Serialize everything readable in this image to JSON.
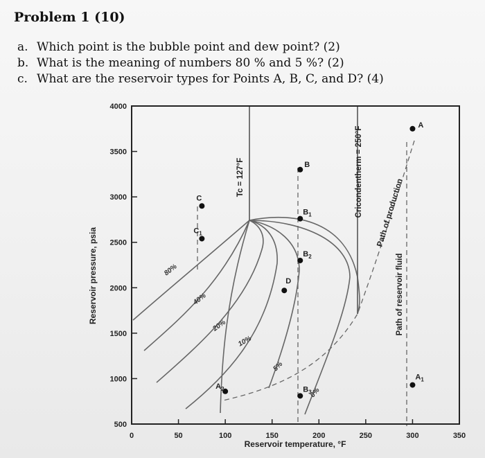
{
  "problem": {
    "title": "Problem 1 (10)",
    "questions": [
      {
        "label": "a.",
        "text": "Which point is the bubble point and dew point? (2)"
      },
      {
        "label": "b.",
        "text": "What is the meaning of numbers 80 % and 5 %? (2)"
      },
      {
        "label": "c.",
        "text": "What are the reservoir types for Points A, B, C, and D? (4)"
      }
    ]
  },
  "chart_data": {
    "type": "phase-diagram",
    "xlabel": "Reservoir temperature, °F",
    "ylabel": "Reservoir pressure, psia",
    "xlim": [
      0,
      350
    ],
    "ylim": [
      500,
      4000
    ],
    "x_ticks": [
      "0",
      "50",
      "100",
      "150",
      "200",
      "250",
      "300",
      "350"
    ],
    "y_ticks": [
      "500",
      "1000",
      "1500",
      "2000",
      "2500",
      "3000",
      "3500",
      "4000"
    ],
    "critical_temperature_label": "Tc = 127°F",
    "cricondentherm_label": "Cricondentherm = 250°F",
    "path_of_production_label": "Path of production",
    "path_of_fluid_label": "Path of reservoir fluid",
    "quality_lines": [
      "80%",
      "40%",
      "20%",
      "10%",
      "5%",
      "0%"
    ],
    "points": [
      {
        "name": "A",
        "x": 300,
        "y": 3750
      },
      {
        "name": "A1",
        "x": 300,
        "y": 930
      },
      {
        "name": "A2",
        "x": 100,
        "y": 860
      },
      {
        "name": "B",
        "x": 180,
        "y": 3300
      },
      {
        "name": "B1",
        "x": 180,
        "y": 2760
      },
      {
        "name": "B2",
        "x": 180,
        "y": 2300
      },
      {
        "name": "B3",
        "x": 180,
        "y": 810
      },
      {
        "name": "C",
        "x": 75,
        "y": 2900
      },
      {
        "name": "C1",
        "x": 75,
        "y": 2540
      },
      {
        "name": "D",
        "x": 163,
        "y": 1970
      }
    ]
  }
}
